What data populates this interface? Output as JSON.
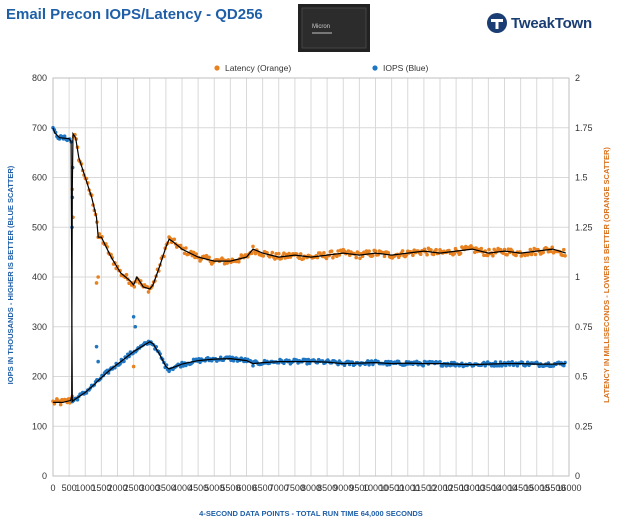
{
  "header": {
    "title": "Email Precon IOPS/Latency - QD256",
    "brand": "TweakTown",
    "product_label": "Micron"
  },
  "colors": {
    "title": "#1f5fa8",
    "iops": "#1f77c4",
    "latency": "#e8811f",
    "trend": "#000000",
    "grid": "#d9d9d9"
  },
  "chart_data": {
    "type": "scatter",
    "title": "Email Precon IOPS/Latency - QD256",
    "xlabel": "4-SECOND  DATA POINTS - TOTAL RUN TIME 64,000  SECONDS",
    "ylabel_left": "IOPS IN THOUSANDS - HIGHER  IS BETTER (BLUE SCATTER)",
    "ylabel_right": "LATENCY IN MILLISECONDS - LOWER IS BETTER (ORANGE SCATTER)",
    "legend_position": "top-center",
    "grid": true,
    "xlim": [
      0,
      16000
    ],
    "ylim_left": [
      0,
      800
    ],
    "ylim_right": [
      0,
      2
    ],
    "x_ticks": [
      "0",
      "500",
      "1000",
      "1500",
      "2000",
      "2500",
      "3000",
      "3500",
      "4000",
      "4500",
      "5000",
      "5500",
      "6000",
      "6500",
      "7000",
      "7500",
      "8000",
      "8500",
      "9000",
      "9500",
      "10000",
      "10500",
      "11000",
      "11500",
      "12000",
      "12500",
      "13000",
      "13500",
      "14000",
      "14500",
      "15000",
      "15500",
      "16000"
    ],
    "y_left_ticks": [
      "0",
      "100",
      "200",
      "300",
      "400",
      "500",
      "600",
      "700",
      "800"
    ],
    "y_right_ticks": [
      "0",
      "0.25",
      "0.5",
      "0.75",
      "1",
      "1.25",
      "1.5",
      "1.75",
      "2"
    ],
    "series": [
      {
        "name": "Latency (Orange)",
        "axis": "right",
        "points": [
          [
            0,
            0.37
          ],
          [
            300,
            0.37
          ],
          [
            550,
            0.38
          ],
          [
            580,
            0.4
          ],
          [
            600,
            1.45
          ],
          [
            620,
            1.72
          ],
          [
            700,
            1.7
          ],
          [
            800,
            1.6
          ],
          [
            1000,
            1.5
          ],
          [
            1200,
            1.4
          ],
          [
            1350,
            1.3
          ],
          [
            1400,
            1.2
          ],
          [
            1500,
            1.2
          ],
          [
            1800,
            1.1
          ],
          [
            2100,
            1.02
          ],
          [
            2400,
            0.98
          ],
          [
            2500,
            0.96
          ],
          [
            2600,
            1.0
          ],
          [
            2800,
            0.95
          ],
          [
            3000,
            0.94
          ],
          [
            3100,
            0.96
          ],
          [
            3300,
            1.05
          ],
          [
            3500,
            1.15
          ],
          [
            3600,
            1.19
          ],
          [
            3700,
            1.18
          ],
          [
            4000,
            1.14
          ],
          [
            4500,
            1.1
          ],
          [
            5000,
            1.08
          ],
          [
            5500,
            1.08
          ],
          [
            6000,
            1.1
          ],
          [
            6200,
            1.14
          ],
          [
            6500,
            1.12
          ],
          [
            7000,
            1.1
          ],
          [
            7500,
            1.11
          ],
          [
            8000,
            1.1
          ],
          [
            8500,
            1.11
          ],
          [
            9000,
            1.12
          ],
          [
            9500,
            1.11
          ],
          [
            10000,
            1.12
          ],
          [
            10500,
            1.11
          ],
          [
            11000,
            1.12
          ],
          [
            11500,
            1.13
          ],
          [
            12000,
            1.12
          ],
          [
            12500,
            1.13
          ],
          [
            13000,
            1.14
          ],
          [
            13500,
            1.12
          ],
          [
            14000,
            1.13
          ],
          [
            14500,
            1.12
          ],
          [
            15000,
            1.13
          ],
          [
            15500,
            1.14
          ],
          [
            15900,
            1.12
          ]
        ]
      },
      {
        "name": "IOPS (Blue)",
        "axis": "left",
        "points": [
          [
            0,
            700
          ],
          [
            50,
            690
          ],
          [
            200,
            680
          ],
          [
            500,
            678
          ],
          [
            560,
            672
          ],
          [
            600,
            150
          ],
          [
            700,
            155
          ],
          [
            1000,
            168
          ],
          [
            1300,
            185
          ],
          [
            1400,
            192
          ],
          [
            1800,
            215
          ],
          [
            2200,
            235
          ],
          [
            2500,
            250
          ],
          [
            2800,
            262
          ],
          [
            3000,
            270
          ],
          [
            3100,
            266
          ],
          [
            3300,
            245
          ],
          [
            3500,
            220
          ],
          [
            3600,
            215
          ],
          [
            3800,
            220
          ],
          [
            4000,
            225
          ],
          [
            4500,
            232
          ],
          [
            5000,
            235
          ],
          [
            5500,
            236
          ],
          [
            6000,
            232
          ],
          [
            6200,
            226
          ],
          [
            6500,
            228
          ],
          [
            7000,
            230
          ],
          [
            7500,
            230
          ],
          [
            8000,
            230
          ],
          [
            8500,
            229
          ],
          [
            9000,
            226
          ],
          [
            9500,
            227
          ],
          [
            10000,
            228
          ],
          [
            10500,
            226
          ],
          [
            11000,
            227
          ],
          [
            11500,
            226
          ],
          [
            12000,
            226
          ],
          [
            12500,
            225
          ],
          [
            13000,
            224
          ],
          [
            13500,
            225
          ],
          [
            14000,
            226
          ],
          [
            14500,
            226
          ],
          [
            15000,
            225
          ],
          [
            15500,
            225
          ],
          [
            15900,
            226
          ]
        ]
      }
    ],
    "outliers": {
      "latency": [
        [
          600,
          0.4
        ],
        [
          620,
          1.3
        ],
        [
          1350,
          0.97
        ],
        [
          1400,
          1.0
        ],
        [
          2500,
          0.55
        ],
        [
          2550,
          0.75
        ]
      ],
      "iops": [
        [
          590,
          500
        ],
        [
          600,
          560
        ],
        [
          610,
          620
        ],
        [
          1350,
          260
        ],
        [
          1400,
          230
        ],
        [
          2500,
          320
        ],
        [
          2550,
          300
        ]
      ]
    }
  }
}
